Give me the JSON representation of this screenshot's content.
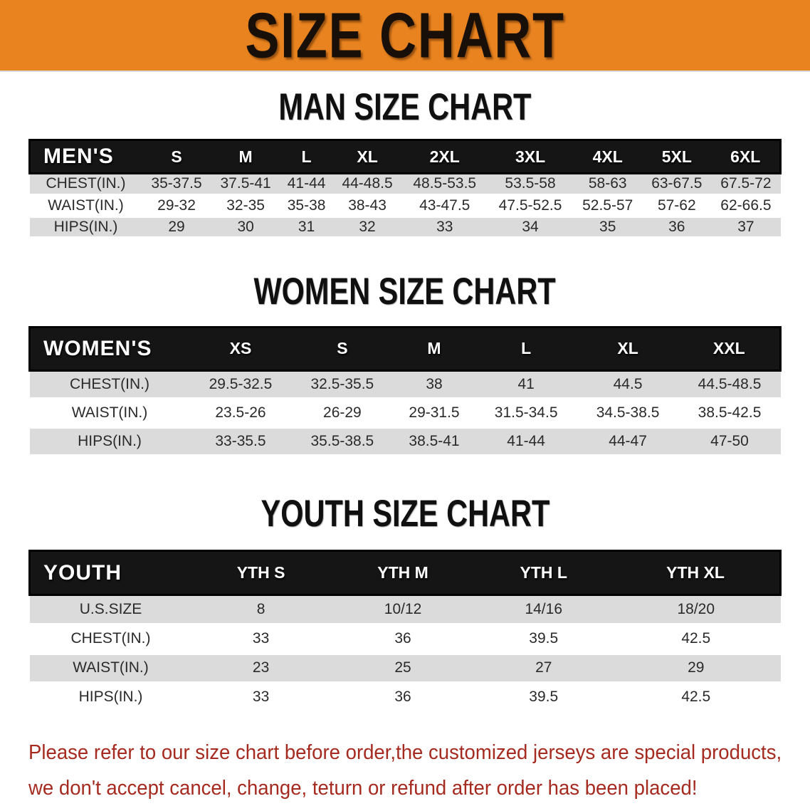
{
  "banner": {
    "title": "SIZE CHART",
    "bg_color": "#E8831F",
    "text_color": "#181008"
  },
  "sections": [
    {
      "id": "men",
      "title": "MAN SIZE CHART",
      "header_label": "MEN'S",
      "columns": [
        "S",
        "M",
        "L",
        "XL",
        "2XL",
        "3XL",
        "4XL",
        "5XL",
        "6XL"
      ],
      "rows": [
        {
          "label": "CHEST(IN.)",
          "values": [
            "35-37.5",
            "37.5-41",
            "41-44",
            "44-48.5",
            "48.5-53.5",
            "53.5-58",
            "58-63",
            "63-67.5",
            "67.5-72"
          ]
        },
        {
          "label": "WAIST(IN.)",
          "values": [
            "29-32",
            "32-35",
            "35-38",
            "38-43",
            "43-47.5",
            "47.5-52.5",
            "52.5-57",
            "57-62",
            "62-66.5"
          ]
        },
        {
          "label": "HIPS(IN.)",
          "values": [
            "29",
            "30",
            "31",
            "32",
            "33",
            "34",
            "35",
            "36",
            "37"
          ]
        }
      ]
    },
    {
      "id": "women",
      "title": "WOMEN SIZE CHART",
      "header_label": "WOMEN'S",
      "columns": [
        "XS",
        "S",
        "M",
        "L",
        "XL",
        "XXL"
      ],
      "rows": [
        {
          "label": "CHEST(IN.)",
          "values": [
            "29.5-32.5",
            "32.5-35.5",
            "38",
            "41",
            "44.5",
            "44.5-48.5"
          ]
        },
        {
          "label": "WAIST(IN.)",
          "values": [
            "23.5-26",
            "26-29",
            "29-31.5",
            "31.5-34.5",
            "34.5-38.5",
            "38.5-42.5"
          ]
        },
        {
          "label": "HIPS(IN.)",
          "values": [
            "33-35.5",
            "35.5-38.5",
            "38.5-41",
            "41-44",
            "44-47",
            "47-50"
          ]
        }
      ]
    },
    {
      "id": "youth",
      "title": "YOUTH SIZE CHART",
      "header_label": "YOUTH",
      "columns": [
        "YTH S",
        "YTH M",
        "YTH L",
        "YTH XL"
      ],
      "rows": [
        {
          "label": "U.S.SIZE",
          "values": [
            "8",
            "10/12",
            "14/16",
            "18/20"
          ]
        },
        {
          "label": "CHEST(IN.)",
          "values": [
            "33",
            "36",
            "39.5",
            "42.5"
          ]
        },
        {
          "label": "WAIST(IN.)",
          "values": [
            "23",
            "25",
            "27",
            "29"
          ]
        },
        {
          "label": "HIPS(IN.)",
          "values": [
            "33",
            "36",
            "39.5",
            "42.5"
          ]
        }
      ]
    }
  ],
  "disclaimer": {
    "line1": "Please refer to our size chart before order,the customized jerseys are special products,",
    "line2": "we don't accept cancel, change, teturn or refund after order has been placed!",
    "color": "#A52A1F"
  },
  "colors": {
    "banner_orange": "#E8831F",
    "header_bar_black": "#151515",
    "row_stripe_gray": "#DBDBDB",
    "row_white": "#FFFFFF",
    "disclaimer_red": "#A52A1F"
  }
}
